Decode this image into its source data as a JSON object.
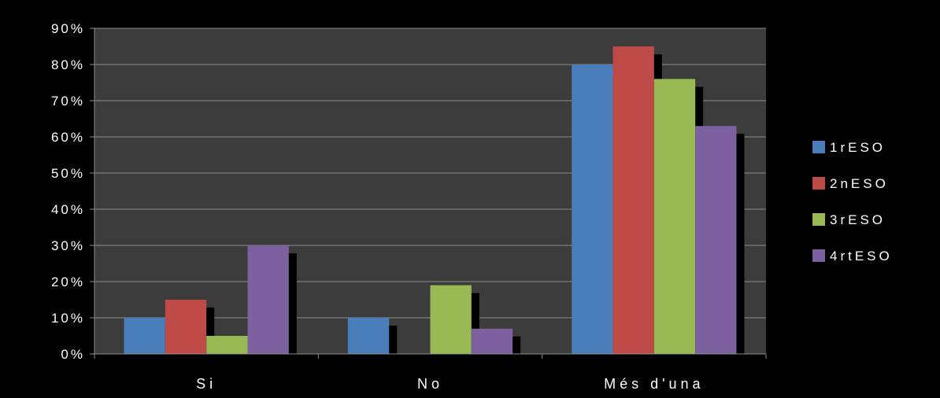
{
  "chart_data": {
    "type": "bar",
    "categories": [
      "Si",
      "No",
      "Més d'una"
    ],
    "series": [
      {
        "name": "1rESO",
        "values": [
          10,
          10,
          80
        ],
        "color": "#4a7ebb"
      },
      {
        "name": "2nESO",
        "values": [
          15,
          0,
          85
        ],
        "color": "#be4b48"
      },
      {
        "name": "3rESO",
        "values": [
          5,
          19,
          76
        ],
        "color": "#98b954"
      },
      {
        "name": "4rtESO",
        "values": [
          30,
          7,
          63
        ],
        "color": "#7d60a0"
      }
    ],
    "y_ticks": [
      "0%",
      "10%",
      "20%",
      "30%",
      "40%",
      "50%",
      "60%",
      "70%",
      "80%",
      "90%"
    ],
    "ylim": [
      0,
      90
    ],
    "y_unit": "%",
    "grid": true,
    "legend_position": "right",
    "title": "",
    "xlabel": "",
    "ylabel": ""
  },
  "colors": {
    "background": "#000000",
    "plot_area": "#3c3c3c",
    "gridline": "#8c8c8c",
    "text": "#ffffff"
  }
}
